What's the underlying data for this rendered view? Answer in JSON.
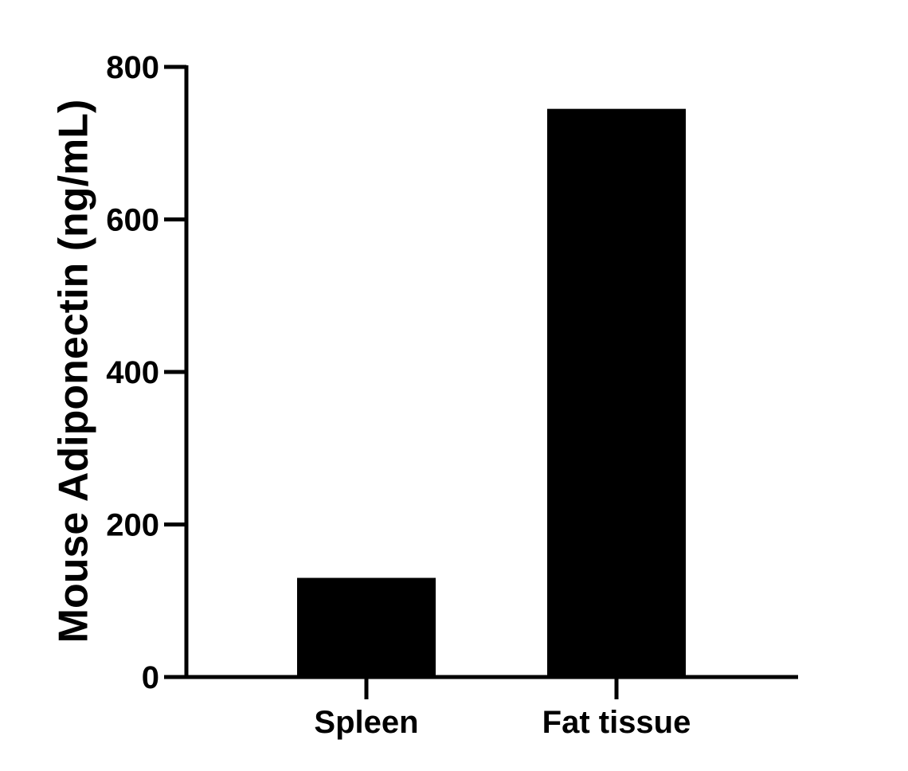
{
  "chart_data": {
    "type": "bar",
    "title": "",
    "xlabel": "",
    "ylabel": "Mouse Adiponectin (ng/mL)",
    "categories": [
      "Spleen",
      "Fat tissue"
    ],
    "values": [
      130,
      745
    ],
    "ylim": [
      0,
      800
    ],
    "yticks": [
      0,
      200,
      400,
      600,
      800
    ],
    "ytick_labels": [
      "0",
      "200",
      "400",
      "600",
      "800"
    ],
    "grid": false,
    "legend": "none",
    "bar_color": "#000000"
  }
}
